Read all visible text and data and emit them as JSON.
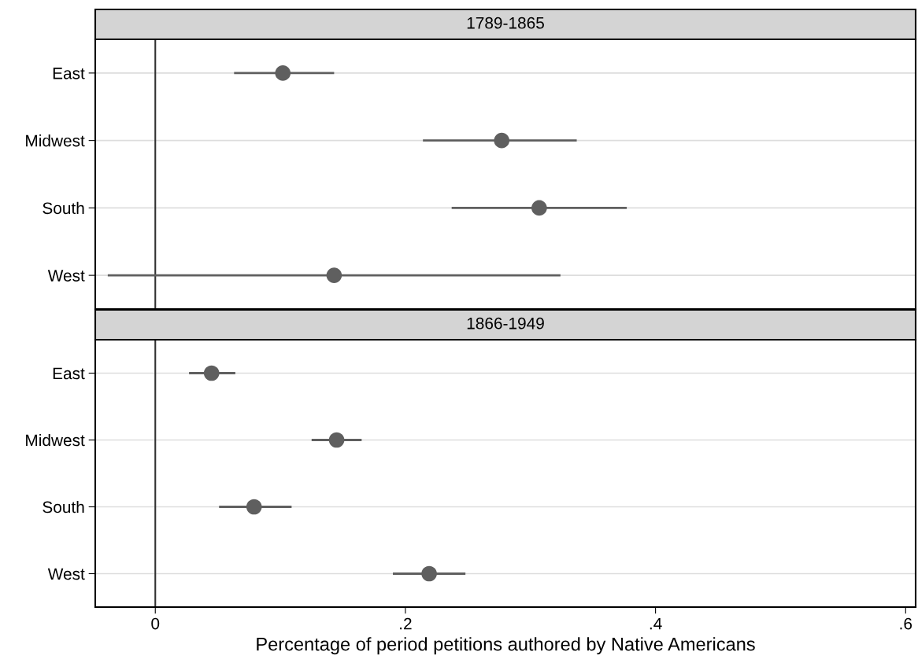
{
  "chart_data": [
    {
      "type": "scatter",
      "title": "1789-1865",
      "orientation": "horizontal",
      "categories": [
        "East",
        "Midwest",
        "South",
        "West"
      ],
      "values": [
        0.102,
        0.277,
        0.307,
        0.143
      ],
      "errors": [
        [
          0.063,
          0.143
        ],
        [
          0.214,
          0.337
        ],
        [
          0.237,
          0.377
        ],
        [
          -0.038,
          0.324
        ]
      ],
      "color": "#5f5f5f",
      "marker": "circle",
      "xlim": [
        -0.048,
        0.608
      ],
      "grid": "y",
      "tick_labels": "y",
      "ref_lines": [
        {
          "axis": "x",
          "value": 0,
          "label": null,
          "color": "#333333"
        }
      ]
    },
    {
      "type": "scatter",
      "title": "1866-1949",
      "orientation": "horizontal",
      "categories": [
        "East",
        "Midwest",
        "South",
        "West"
      ],
      "values": [
        0.045,
        0.145,
        0.079,
        0.219
      ],
      "errors": [
        [
          0.027,
          0.064
        ],
        [
          0.125,
          0.165
        ],
        [
          0.051,
          0.109
        ],
        [
          0.19,
          0.248
        ]
      ],
      "color": "#5f5f5f",
      "marker": "circle",
      "xlim": [
        -0.048,
        0.608
      ],
      "xticks": [
        0,
        {
          "value": 0.2,
          "label": ".2"
        },
        {
          "value": 0.4,
          "label": ".4"
        },
        {
          "value": 0.6,
          "label": ".6"
        }
      ],
      "xlabel": "Percentage of period petitions authored by Native Americans",
      "grid": "y",
      "ref_lines": [
        {
          "axis": "x",
          "value": 0,
          "label": null,
          "color": "#333333"
        }
      ]
    }
  ]
}
